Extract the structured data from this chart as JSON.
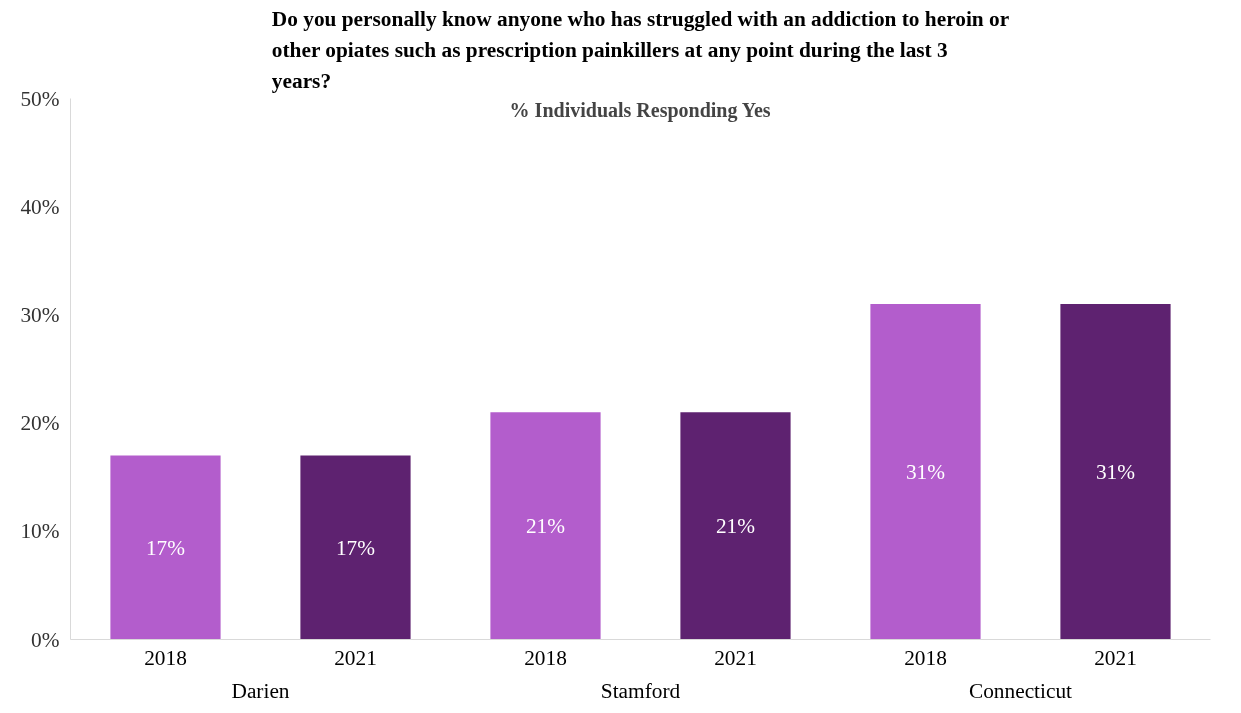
{
  "chart_data": {
    "type": "bar",
    "title": "Do you personally know anyone who has struggled with an addiction to heroin or other opiates such as prescription painkillers at any point during the last 3 years?",
    "subtitle": "% Individuals Responding Yes",
    "categories": [
      "Darien",
      "Stamford",
      "Connecticut"
    ],
    "series": [
      {
        "name": "2018",
        "color": "#b35dcc",
        "values": [
          17,
          21,
          31
        ],
        "value_labels": [
          "17%",
          "21%",
          "31%"
        ]
      },
      {
        "name": "2021",
        "color": "#5e2270",
        "values": [
          17,
          21,
          31
        ],
        "value_labels": [
          "17%",
          "21%",
          "31%"
        ]
      }
    ],
    "ylim": [
      0,
      50
    ],
    "yticks": [
      {
        "value": 0,
        "label": "0%"
      },
      {
        "value": 10,
        "label": "10%"
      },
      {
        "value": 20,
        "label": "20%"
      },
      {
        "value": 30,
        "label": "30%"
      },
      {
        "value": 40,
        "label": "40%"
      },
      {
        "value": 50,
        "label": "50%"
      }
    ],
    "grid": false
  }
}
